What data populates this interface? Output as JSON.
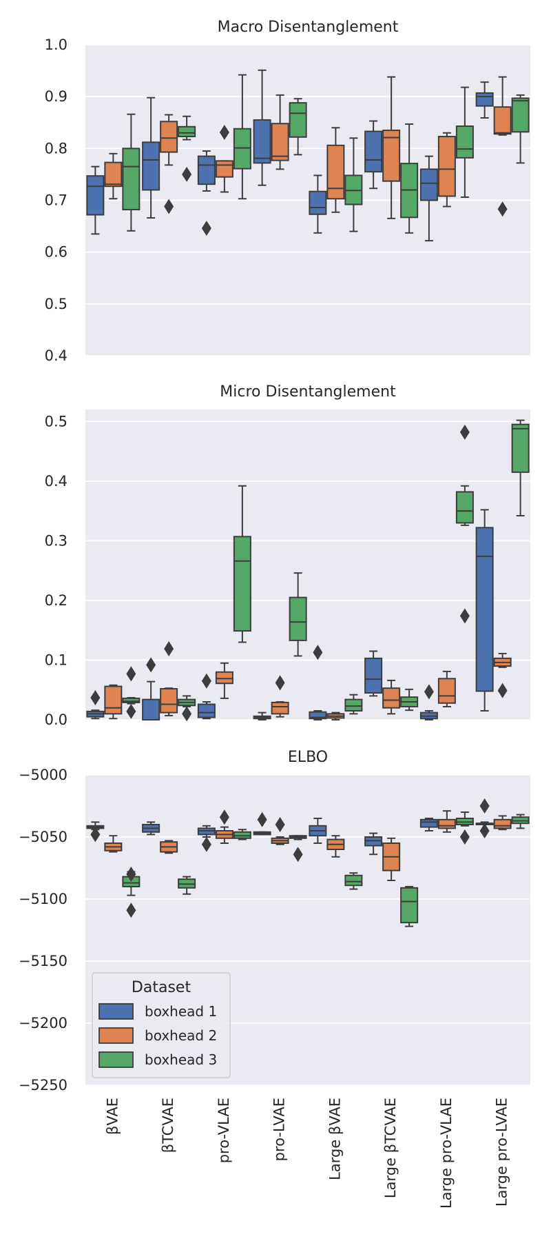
{
  "colors": {
    "background": "#eaeaf2",
    "grid": "#ffffff",
    "edge": "#3d3d3d",
    "series": [
      "#4c72b0",
      "#dd8452",
      "#55a868"
    ]
  },
  "legend": {
    "title": "Dataset",
    "location": "lower-left of ELBO panel"
  },
  "chart_data": [
    {
      "type": "box",
      "title": "Macro Disentanglement",
      "ylim": [
        0.4,
        1.0
      ],
      "yticks": [
        0.4,
        0.5,
        0.6,
        0.7,
        0.8,
        0.9,
        1.0
      ],
      "ytick_labels": [
        "0.4",
        "0.5",
        "0.6",
        "0.7",
        "0.8",
        "0.9",
        "1.0"
      ],
      "categories": [
        "βVAE",
        "βTCVAE",
        "pro-VLAE",
        "pro-LVAE",
        "Large βVAE",
        "Large βTCVAE",
        "Large pro-VLAE",
        "Large pro-LVAE"
      ],
      "series": [
        {
          "name": "boxhead 1",
          "boxes": [
            {
              "whislo": 0.635,
              "q1": 0.672,
              "med": 0.727,
              "q3": 0.747,
              "whishi": 0.765,
              "fliers": []
            },
            {
              "whislo": 0.666,
              "q1": 0.72,
              "med": 0.778,
              "q3": 0.812,
              "whishi": 0.898,
              "fliers": []
            },
            {
              "whislo": 0.718,
              "q1": 0.731,
              "med": 0.768,
              "q3": 0.785,
              "whishi": 0.795,
              "fliers": [
                0.646
              ]
            },
            {
              "whislo": 0.729,
              "q1": 0.772,
              "med": 0.781,
              "q3": 0.855,
              "whishi": 0.951,
              "fliers": []
            },
            {
              "whislo": 0.637,
              "q1": 0.673,
              "med": 0.686,
              "q3": 0.717,
              "whishi": 0.748,
              "fliers": []
            },
            {
              "whislo": 0.723,
              "q1": 0.755,
              "med": 0.778,
              "q3": 0.833,
              "whishi": 0.853,
              "fliers": []
            },
            {
              "whislo": 0.622,
              "q1": 0.7,
              "med": 0.733,
              "q3": 0.76,
              "whishi": 0.785,
              "fliers": []
            },
            {
              "whislo": 0.859,
              "q1": 0.882,
              "med": 0.9,
              "q3": 0.907,
              "whishi": 0.928,
              "fliers": []
            }
          ]
        },
        {
          "name": "boxhead 2",
          "boxes": [
            {
              "whislo": 0.703,
              "q1": 0.727,
              "med": 0.731,
              "q3": 0.773,
              "whishi": 0.79,
              "fliers": []
            },
            {
              "whislo": 0.768,
              "q1": 0.793,
              "med": 0.82,
              "q3": 0.852,
              "whishi": 0.865,
              "fliers": [
                0.688
              ]
            },
            {
              "whislo": 0.716,
              "q1": 0.745,
              "med": 0.768,
              "q3": 0.776,
              "whishi": 0.776,
              "fliers": [
                0.831
              ]
            },
            {
              "whislo": 0.76,
              "q1": 0.777,
              "med": 0.785,
              "q3": 0.848,
              "whishi": 0.903,
              "fliers": []
            },
            {
              "whislo": 0.677,
              "q1": 0.703,
              "med": 0.723,
              "q3": 0.806,
              "whishi": 0.84,
              "fliers": []
            },
            {
              "whislo": 0.665,
              "q1": 0.737,
              "med": 0.821,
              "q3": 0.835,
              "whishi": 0.938,
              "fliers": []
            },
            {
              "whislo": 0.688,
              "q1": 0.708,
              "med": 0.76,
              "q3": 0.823,
              "whishi": 0.83,
              "fliers": []
            },
            {
              "whislo": 0.826,
              "q1": 0.828,
              "med": 0.83,
              "q3": 0.88,
              "whishi": 0.938,
              "fliers": [
                0.683
              ]
            }
          ]
        },
        {
          "name": "boxhead 3",
          "boxes": [
            {
              "whislo": 0.641,
              "q1": 0.682,
              "med": 0.765,
              "q3": 0.8,
              "whishi": 0.866,
              "fliers": []
            },
            {
              "whislo": 0.817,
              "q1": 0.823,
              "med": 0.83,
              "q3": 0.842,
              "whishi": 0.862,
              "fliers": [
                0.75
              ]
            },
            {
              "whislo": 0.703,
              "q1": 0.761,
              "med": 0.801,
              "q3": 0.838,
              "whishi": 0.942,
              "fliers": []
            },
            {
              "whislo": 0.788,
              "q1": 0.822,
              "med": 0.868,
              "q3": 0.888,
              "whishi": 0.896,
              "fliers": []
            },
            {
              "whislo": 0.64,
              "q1": 0.692,
              "med": 0.719,
              "q3": 0.748,
              "whishi": 0.82,
              "fliers": []
            },
            {
              "whislo": 0.637,
              "q1": 0.667,
              "med": 0.72,
              "q3": 0.771,
              "whishi": 0.847,
              "fliers": []
            },
            {
              "whislo": 0.706,
              "q1": 0.782,
              "med": 0.799,
              "q3": 0.843,
              "whishi": 0.918,
              "fliers": []
            },
            {
              "whislo": 0.772,
              "q1": 0.832,
              "med": 0.892,
              "q3": 0.897,
              "whishi": 0.903,
              "fliers": []
            }
          ]
        }
      ]
    },
    {
      "type": "box",
      "title": "Micro Disentanglement",
      "ylim": [
        0.0,
        0.52
      ],
      "yticks": [
        0.0,
        0.1,
        0.2,
        0.3,
        0.4,
        0.5
      ],
      "ytick_labels": [
        "0.0",
        "0.1",
        "0.2",
        "0.3",
        "0.4",
        "0.5"
      ],
      "categories": [
        "βVAE",
        "βTCVAE",
        "pro-VLAE",
        "pro-LVAE",
        "Large βVAE",
        "Large βTCVAE",
        "Large pro-VLAE",
        "Large pro-LVAE"
      ],
      "series": [
        {
          "name": "boxhead 1",
          "boxes": [
            {
              "whislo": 0.002,
              "q1": 0.005,
              "med": 0.01,
              "q3": 0.014,
              "whishi": 0.016,
              "fliers": [
                0.037
              ]
            },
            {
              "whislo": 0.0,
              "q1": 0.0,
              "med": 0.0,
              "q3": 0.034,
              "whishi": 0.064,
              "fliers": [
                0.092
              ]
            },
            {
              "whislo": 0.002,
              "q1": 0.004,
              "med": 0.012,
              "q3": 0.026,
              "whishi": 0.03,
              "fliers": [
                0.065
              ]
            },
            {
              "whislo": 0.0,
              "q1": 0.002,
              "med": 0.004,
              "q3": 0.006,
              "whishi": 0.012,
              "fliers": []
            },
            {
              "whislo": 0.0,
              "q1": 0.002,
              "med": 0.004,
              "q3": 0.013,
              "whishi": 0.015,
              "fliers": [
                0.113
              ]
            },
            {
              "whislo": 0.04,
              "q1": 0.045,
              "med": 0.068,
              "q3": 0.103,
              "whishi": 0.115,
              "fliers": []
            },
            {
              "whislo": 0.0,
              "q1": 0.002,
              "med": 0.006,
              "q3": 0.012,
              "whishi": 0.015,
              "fliers": [
                0.047
              ]
            },
            {
              "whislo": 0.015,
              "q1": 0.048,
              "med": 0.274,
              "q3": 0.322,
              "whishi": 0.352,
              "fliers": []
            }
          ]
        },
        {
          "name": "boxhead 2",
          "boxes": [
            {
              "whislo": 0.002,
              "q1": 0.01,
              "med": 0.02,
              "q3": 0.056,
              "whishi": 0.058,
              "fliers": []
            },
            {
              "whislo": 0.007,
              "q1": 0.012,
              "med": 0.026,
              "q3": 0.052,
              "whishi": 0.053,
              "fliers": [
                0.119
              ]
            },
            {
              "whislo": 0.036,
              "q1": 0.061,
              "med": 0.069,
              "q3": 0.08,
              "whishi": 0.095,
              "fliers": []
            },
            {
              "whislo": 0.005,
              "q1": 0.01,
              "med": 0.022,
              "q3": 0.029,
              "whishi": 0.03,
              "fliers": [
                0.062
              ]
            },
            {
              "whislo": 0.0,
              "q1": 0.003,
              "med": 0.006,
              "q3": 0.01,
              "whishi": 0.012,
              "fliers": []
            },
            {
              "whislo": 0.01,
              "q1": 0.02,
              "med": 0.033,
              "q3": 0.053,
              "whishi": 0.066,
              "fliers": []
            },
            {
              "whislo": 0.022,
              "q1": 0.028,
              "med": 0.04,
              "q3": 0.069,
              "whishi": 0.081,
              "fliers": []
            },
            {
              "whislo": 0.088,
              "q1": 0.09,
              "med": 0.096,
              "q3": 0.103,
              "whishi": 0.111,
              "fliers": [
                0.049
              ]
            }
          ]
        },
        {
          "name": "boxhead 3",
          "boxes": [
            {
              "whislo": 0.027,
              "q1": 0.029,
              "med": 0.031,
              "q3": 0.036,
              "whishi": 0.037,
              "fliers": [
                0.077,
                0.014
              ]
            },
            {
              "whislo": 0.022,
              "q1": 0.024,
              "med": 0.029,
              "q3": 0.034,
              "whishi": 0.04,
              "fliers": [
                0.01
              ]
            },
            {
              "whislo": 0.13,
              "q1": 0.149,
              "med": 0.266,
              "q3": 0.307,
              "whishi": 0.392,
              "fliers": []
            },
            {
              "whislo": 0.107,
              "q1": 0.133,
              "med": 0.164,
              "q3": 0.205,
              "whishi": 0.246,
              "fliers": []
            },
            {
              "whislo": 0.01,
              "q1": 0.015,
              "med": 0.023,
              "q3": 0.034,
              "whishi": 0.042,
              "fliers": []
            },
            {
              "whislo": 0.016,
              "q1": 0.022,
              "med": 0.03,
              "q3": 0.038,
              "whishi": 0.051,
              "fliers": []
            },
            {
              "whislo": 0.326,
              "q1": 0.33,
              "med": 0.35,
              "q3": 0.382,
              "whishi": 0.392,
              "fliers": [
                0.482,
                0.174
              ]
            },
            {
              "whislo": 0.342,
              "q1": 0.415,
              "med": 0.488,
              "q3": 0.495,
              "whishi": 0.502,
              "fliers": []
            }
          ]
        }
      ]
    },
    {
      "type": "box",
      "title": "ELBO",
      "ylim": [
        -5250,
        -5000
      ],
      "yticks": [
        -5250,
        -5200,
        -5150,
        -5100,
        -5050,
        -5000
      ],
      "ytick_labels": [
        "−5250",
        "−5200",
        "−5150",
        "−5100",
        "−5050",
        "−5000"
      ],
      "categories": [
        "βVAE",
        "βTCVAE",
        "pro-VLAE",
        "pro-LVAE",
        "Large βVAE",
        "Large βTCVAE",
        "Large pro-VLAE",
        "Large pro-LVAE"
      ],
      "series": [
        {
          "name": "boxhead 1",
          "boxes": [
            {
              "whislo": -5044,
              "q1": -5043,
              "med": -5042,
              "q3": -5041,
              "whishi": -5038,
              "fliers": [
                -5048
              ]
            },
            {
              "whislo": -5048,
              "q1": -5046,
              "med": -5043,
              "q3": -5040,
              "whishi": -5038,
              "fliers": []
            },
            {
              "whislo": -5050,
              "q1": -5048,
              "med": -5045,
              "q3": -5043,
              "whishi": -5041,
              "fliers": [
                -5056
              ]
            },
            {
              "whislo": -5048,
              "q1": -5048,
              "med": -5047,
              "q3": -5046,
              "whishi": -5046,
              "fliers": [
                -5036
              ]
            },
            {
              "whislo": -5055,
              "q1": -5049,
              "med": -5045,
              "q3": -5041,
              "whishi": -5035,
              "fliers": []
            },
            {
              "whislo": -5064,
              "q1": -5057,
              "med": -5053,
              "q3": -5050,
              "whishi": -5047,
              "fliers": []
            },
            {
              "whislo": -5045,
              "q1": -5042,
              "med": -5038,
              "q3": -5036,
              "whishi": -5035,
              "fliers": []
            },
            {
              "whislo": -5045,
              "q1": -5040,
              "med": -5039,
              "q3": -5039,
              "whishi": -5038,
              "fliers": [
                -5025,
                -5045
              ]
            }
          ]
        },
        {
          "name": "boxhead 2",
          "boxes": [
            {
              "whislo": -5062,
              "q1": -5061,
              "med": -5058,
              "q3": -5055,
              "whishi": -5049,
              "fliers": []
            },
            {
              "whislo": -5063,
              "q1": -5062,
              "med": -5058,
              "q3": -5054,
              "whishi": -5053,
              "fliers": []
            },
            {
              "whislo": -5055,
              "q1": -5051,
              "med": -5048,
              "q3": -5045,
              "whishi": -5042,
              "fliers": [
                -5034
              ]
            },
            {
              "whislo": -5056,
              "q1": -5055,
              "med": -5053,
              "q3": -5051,
              "whishi": -5050,
              "fliers": [
                -5040
              ]
            },
            {
              "whislo": -5066,
              "q1": -5060,
              "med": -5056,
              "q3": -5052,
              "whishi": -5049,
              "fliers": []
            },
            {
              "whislo": -5085,
              "q1": -5077,
              "med": -5066,
              "q3": -5055,
              "whishi": -5051,
              "fliers": []
            },
            {
              "whislo": -5046,
              "q1": -5043,
              "med": -5041,
              "q3": -5036,
              "whishi": -5029,
              "fliers": []
            },
            {
              "whislo": -5044,
              "q1": -5043,
              "med": -5041,
              "q3": -5036,
              "whishi": -5033,
              "fliers": []
            }
          ]
        },
        {
          "name": "boxhead 3",
          "boxes": [
            {
              "whislo": -5097,
              "q1": -5090,
              "med": -5087,
              "q3": -5082,
              "whishi": -5078,
              "fliers": [
                -5080,
                -5109
              ]
            },
            {
              "whislo": -5096,
              "q1": -5091,
              "med": -5088,
              "q3": -5084,
              "whishi": -5082,
              "fliers": []
            },
            {
              "whislo": -5052,
              "q1": -5051,
              "med": -5049,
              "q3": -5046,
              "whishi": -5044,
              "fliers": []
            },
            {
              "whislo": -5052,
              "q1": -5051,
              "med": -5050,
              "q3": -5049,
              "whishi": -5049,
              "fliers": [
                -5064
              ]
            },
            {
              "whislo": -5092,
              "q1": -5089,
              "med": -5086,
              "q3": -5081,
              "whishi": -5079,
              "fliers": []
            },
            {
              "whislo": -5122,
              "q1": -5119,
              "med": -5102,
              "q3": -5091,
              "whishi": -5090,
              "fliers": []
            },
            {
              "whislo": -5041,
              "q1": -5040,
              "med": -5038,
              "q3": -5035,
              "whishi": -5030,
              "fliers": [
                -5050
              ]
            },
            {
              "whislo": -5043,
              "q1": -5039,
              "med": -5037,
              "q3": -5034,
              "whishi": -5032,
              "fliers": []
            }
          ]
        }
      ]
    }
  ]
}
